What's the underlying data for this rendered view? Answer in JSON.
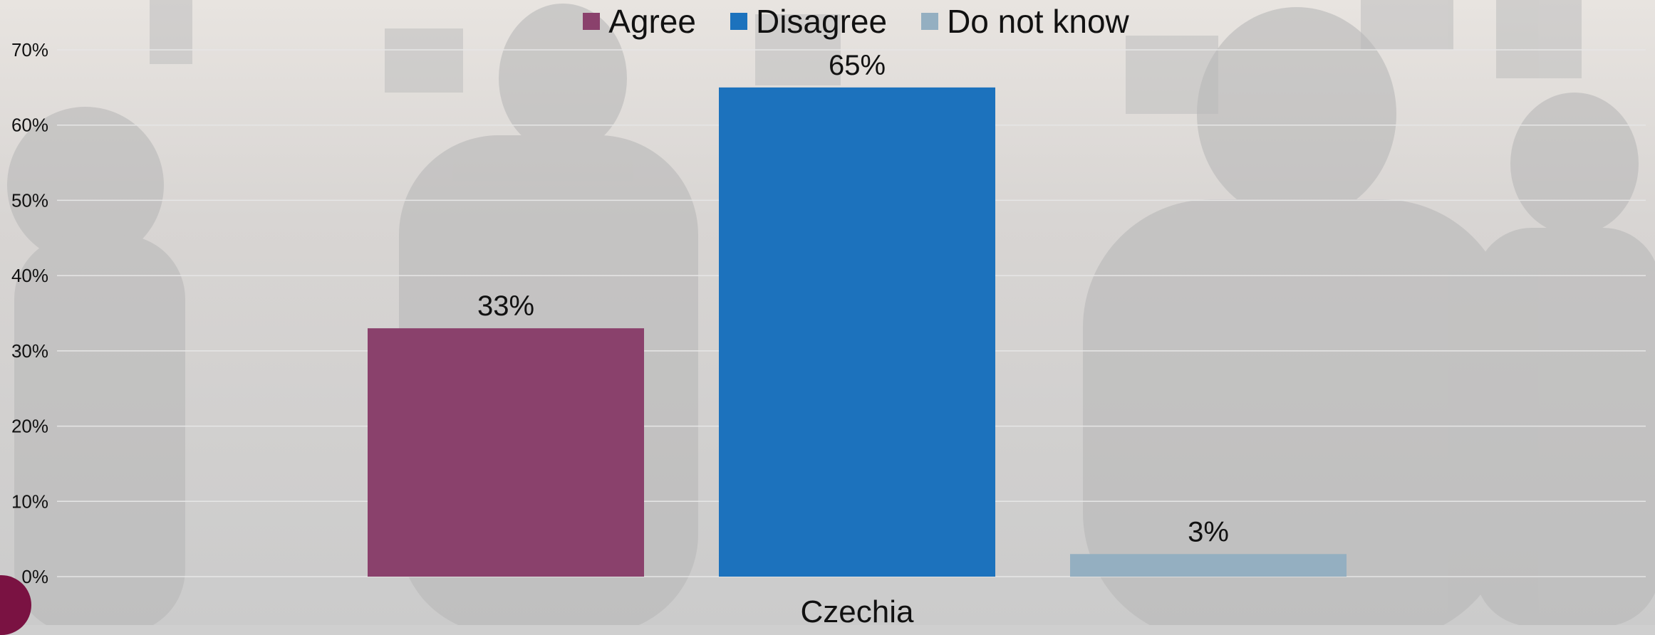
{
  "legend": {
    "items": [
      {
        "label": "Agree",
        "color": "#8a416c"
      },
      {
        "label": "Disagree",
        "color": "#1c72bd"
      },
      {
        "label": "Do not know",
        "color": "#94afc1"
      }
    ]
  },
  "colors": {
    "agree": "#8a416c",
    "disagree": "#1c72bd",
    "do_not_know": "#94afc1",
    "logo": "#7a1242"
  },
  "chart_data": {
    "type": "bar",
    "title": "",
    "xlabel": "",
    "ylabel": "",
    "categories": [
      "Czechia"
    ],
    "series": [
      {
        "name": "Agree",
        "values": [
          33
        ],
        "data_labels": [
          "33%"
        ],
        "color": "#8a416c"
      },
      {
        "name": "Disagree",
        "values": [
          65
        ],
        "data_labels": [
          "65%"
        ],
        "color": "#1c72bd"
      },
      {
        "name": "Do not know",
        "values": [
          3
        ],
        "data_labels": [
          "3%"
        ],
        "color": "#94afc1"
      }
    ],
    "ylim": [
      0,
      70
    ],
    "yticks": [
      "0%",
      "10%",
      "20%",
      "30%",
      "40%",
      "50%",
      "60%",
      "70%"
    ],
    "grid": true,
    "legend_position": "top"
  }
}
